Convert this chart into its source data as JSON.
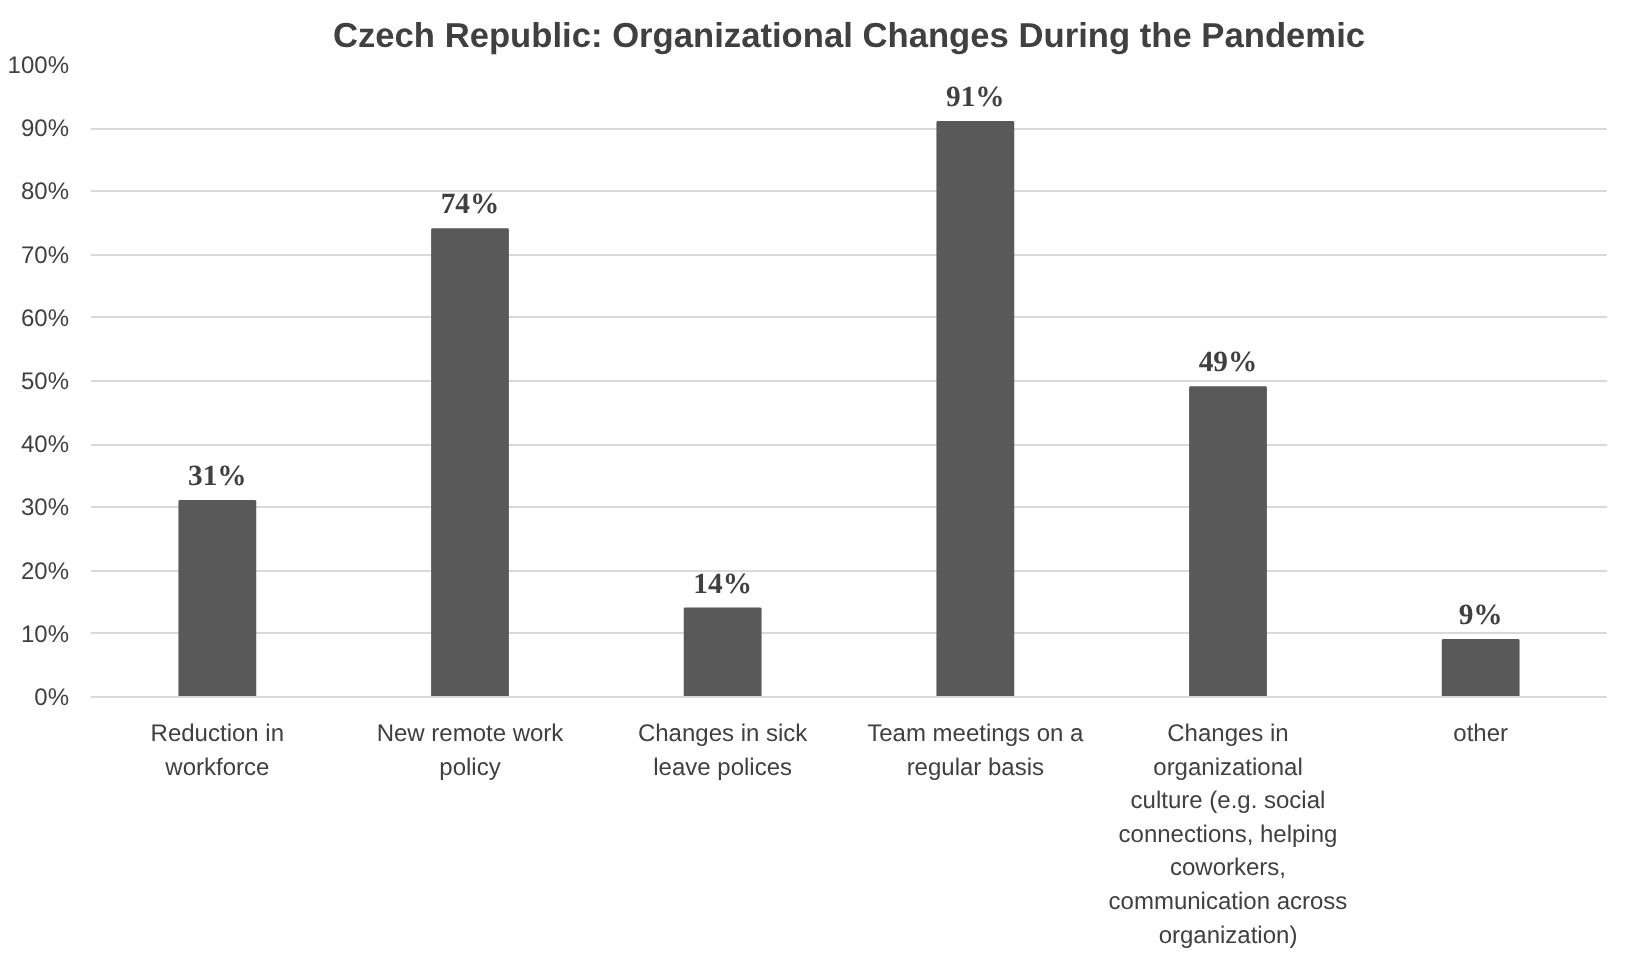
{
  "chart_data": {
    "type": "bar",
    "title": "Czech Republic: Organizational Changes During the Pandemic",
    "categories": [
      "Reduction in workforce",
      "New remote work policy",
      "Changes in sick leave polices",
      "Team meetings on a regular basis",
      "Changes in organizational culture (e.g. social connections, helping coworkers, communication across organization)",
      "other"
    ],
    "values": [
      31,
      74,
      14,
      91,
      49,
      9
    ],
    "value_labels": [
      "31%",
      "74%",
      "14%",
      "91%",
      "49%",
      "9%"
    ],
    "color": "#595959",
    "ylim": [
      0,
      100
    ],
    "yticks": [
      {
        "value": 0,
        "label": "0%"
      },
      {
        "value": 10,
        "label": "10%"
      },
      {
        "value": 20,
        "label": "20%"
      },
      {
        "value": 30,
        "label": "30%"
      },
      {
        "value": 40,
        "label": "40%"
      },
      {
        "value": 50,
        "label": "50%"
      },
      {
        "value": 60,
        "label": "60%"
      },
      {
        "value": 70,
        "label": "70%"
      },
      {
        "value": 80,
        "label": "80%"
      },
      {
        "value": 90,
        "label": "90%"
      },
      {
        "value": 100,
        "label": "100%"
      }
    ],
    "grid": "y"
  }
}
